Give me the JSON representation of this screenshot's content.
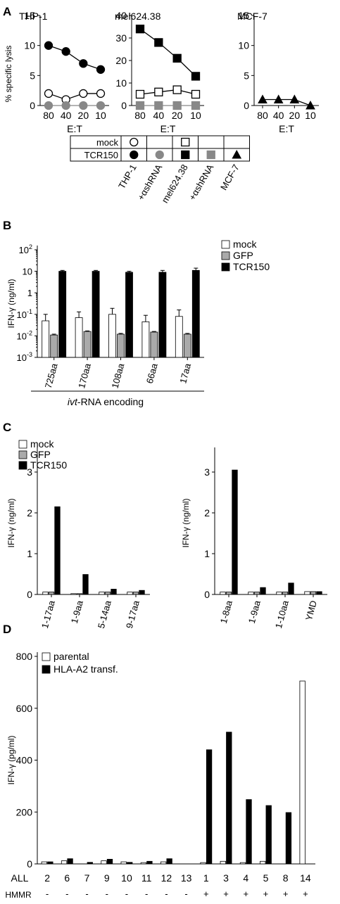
{
  "panels": {
    "A": "A",
    "B": "B",
    "C": "C",
    "D": "D"
  },
  "chart_data": [
    {
      "panel": "A",
      "type": "line",
      "title": "THP-1",
      "ylabel": "% specific lysis",
      "xlabel": "E:T",
      "categories": [
        "80",
        "40",
        "20",
        "10"
      ],
      "ylim": [
        0,
        15
      ],
      "yticks": [
        "0",
        "5",
        "10",
        "15"
      ],
      "series": [
        {
          "name": "mock",
          "marker": "open-circle",
          "color": "#000000",
          "values": [
            2,
            1,
            2,
            2
          ]
        },
        {
          "name": "TCR150",
          "marker": "filled-circle",
          "color": "#000000",
          "values": [
            10,
            9,
            7,
            6
          ]
        },
        {
          "name": "+αshRNA",
          "marker": "filled-circle",
          "color": "#888888",
          "values": [
            0,
            0,
            0,
            0
          ]
        }
      ]
    },
    {
      "panel": "A",
      "type": "line",
      "title": "mel624.38",
      "xlabel": "E:T",
      "categories": [
        "80",
        "40",
        "20",
        "10"
      ],
      "ylim": [
        0,
        40
      ],
      "yticks": [
        "0",
        "10",
        "20",
        "30",
        "40"
      ],
      "series": [
        {
          "name": "mock",
          "marker": "open-square",
          "color": "#000000",
          "values": [
            5,
            6,
            7,
            5
          ]
        },
        {
          "name": "TCR150",
          "marker": "filled-square",
          "color": "#000000",
          "values": [
            34,
            28,
            21,
            13
          ]
        },
        {
          "name": "+αshRNA",
          "marker": "filled-square",
          "color": "#888888",
          "values": [
            0,
            0,
            0,
            0
          ]
        }
      ]
    },
    {
      "panel": "A",
      "type": "line",
      "title": "MCF-7",
      "xlabel": "E:T",
      "categories": [
        "80",
        "40",
        "20",
        "10"
      ],
      "ylim": [
        0,
        15
      ],
      "yticks": [
        "0",
        "5",
        "10",
        "15"
      ],
      "series": [
        {
          "name": "TCR150",
          "marker": "filled-triangle",
          "color": "#000000",
          "values": [
            1,
            1,
            1,
            0
          ]
        }
      ]
    },
    {
      "panel": "B",
      "type": "bar",
      "ylabel": "IFN-γ (ng/ml)",
      "xlabel": "ivt-RNA encoding",
      "yscale": "log",
      "ylim": [
        0.001,
        100
      ],
      "ytick_labels": [
        {
          "base": "10",
          "exp": "2"
        },
        {
          "base": "10",
          "exp": ""
        },
        {
          "base": "1",
          "exp": ""
        },
        {
          "base": "10",
          "exp": "-1"
        },
        {
          "base": "10",
          "exp": "-2"
        },
        {
          "base": "10",
          "exp": "-3"
        }
      ],
      "categories": [
        "725aa",
        "170aa",
        "108aa",
        "66aa",
        "17aa"
      ],
      "legend": [
        "mock",
        "GFP",
        "TCR150"
      ],
      "series": [
        {
          "name": "mock",
          "color": "#ffffff",
          "values": [
            0.05,
            0.07,
            0.1,
            0.045,
            0.08
          ],
          "errors": [
            0.05,
            0.06,
            0.09,
            0.045,
            0.08
          ]
        },
        {
          "name": "GFP",
          "color": "#aaaaaa",
          "values": [
            0.011,
            0.016,
            0.012,
            0.015,
            0.012
          ],
          "errors": [
            0.001,
            0.001,
            0.001,
            0.001,
            0.001
          ]
        },
        {
          "name": "TCR150",
          "color": "#000000",
          "values": [
            10,
            10,
            9,
            9,
            11
          ],
          "errors": [
            1,
            1,
            1,
            2,
            3
          ]
        }
      ]
    },
    {
      "panel": "C",
      "type": "bar",
      "ylabel": "IFN-γ (ng/ml)",
      "ylim": [
        0,
        3.5
      ],
      "yticks": [
        "0",
        "1",
        "2",
        "3"
      ],
      "categories": [
        "1-17aa",
        "1-9aa",
        "5-14aa",
        "9-17aa"
      ],
      "legend": [
        "mock",
        "GFP",
        "TCR150"
      ],
      "series": [
        {
          "name": "mock",
          "color": "#ffffff",
          "values": [
            0.06,
            0.02,
            0.06,
            0.06
          ]
        },
        {
          "name": "GFP",
          "color": "#aaaaaa",
          "values": [
            0.06,
            0.02,
            0.06,
            0.06
          ]
        },
        {
          "name": "TCR150",
          "color": "#000000",
          "values": [
            2.15,
            0.49,
            0.13,
            0.1
          ]
        }
      ]
    },
    {
      "panel": "C",
      "type": "bar",
      "ylabel": "IFN-γ (ng/ml)",
      "ylim": [
        0,
        3.5
      ],
      "yticks": [
        "0",
        "1",
        "2",
        "3"
      ],
      "categories": [
        "1-8aa",
        "1-9aa",
        "1-10aa",
        "YMD"
      ],
      "series": [
        {
          "name": "mock",
          "color": "#ffffff",
          "values": [
            0.06,
            0.06,
            0.06,
            0.07
          ]
        },
        {
          "name": "GFP",
          "color": "#aaaaaa",
          "values": [
            0.06,
            0.06,
            0.06,
            0.07
          ]
        },
        {
          "name": "TCR150",
          "color": "#000000",
          "values": [
            3.05,
            0.17,
            0.28,
            0.07
          ]
        }
      ]
    },
    {
      "panel": "D",
      "type": "bar",
      "ylabel": "IFN-γ (pg/ml)",
      "ylim": [
        0,
        800
      ],
      "yticks": [
        "0",
        "200",
        "400",
        "600",
        "800"
      ],
      "row_labels": [
        "ALL",
        "HMMR"
      ],
      "categories": [
        "2",
        "6",
        "7",
        "9",
        "10",
        "11",
        "12",
        "13",
        "1",
        "3",
        "4",
        "5",
        "8",
        "14"
      ],
      "hmmr": [
        "-",
        "-",
        "-",
        "-",
        "-",
        "-",
        "-",
        "-",
        "+",
        "+",
        "+",
        "+",
        "+",
        "+"
      ],
      "legend": [
        "parental",
        "HLA-A2 transf."
      ],
      "series": [
        {
          "name": "parental",
          "color": "#ffffff",
          "values": [
            8,
            12,
            0,
            12,
            8,
            5,
            8,
            0,
            5,
            10,
            5,
            10,
            0,
            705
          ]
        },
        {
          "name": "HLA-A2 transf.",
          "color": "#000000",
          "values": [
            8,
            20,
            6,
            18,
            6,
            10,
            20,
            0,
            440,
            508,
            248,
            225,
            198,
            0
          ]
        }
      ]
    }
  ],
  "table": {
    "rows": [
      {
        "label": "mock",
        "cells": [
          "open-circle",
          "",
          "open-square",
          "",
          ""
        ]
      },
      {
        "label": "TCR150",
        "cells": [
          "filled-circle",
          "grey-circle",
          "filled-square",
          "grey-square",
          "filled-triangle"
        ]
      }
    ],
    "col_labels": [
      "THP-1",
      "+αshRNA",
      "mel624.38",
      "+αshRNA",
      "MCF-7"
    ]
  }
}
